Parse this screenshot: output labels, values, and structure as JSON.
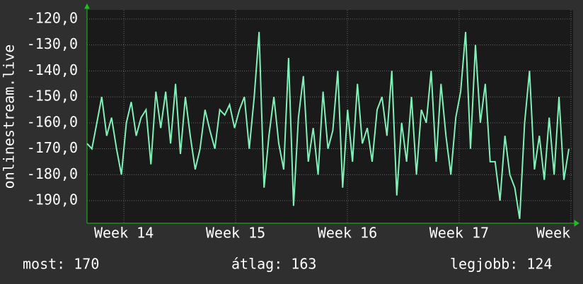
{
  "chart_data": {
    "type": "line",
    "y_label": "onlinestream.live",
    "x": [
      13.67,
      13.714,
      13.758,
      13.802,
      13.846,
      13.89,
      13.934,
      13.978,
      14.022,
      14.066,
      14.11,
      14.154,
      14.198,
      14.242,
      14.286,
      14.33,
      14.374,
      14.418,
      14.462,
      14.506,
      14.55,
      14.594,
      14.638,
      14.682,
      14.726,
      14.77,
      14.814,
      14.858,
      14.902,
      14.946,
      14.99,
      15.034,
      15.078,
      15.122,
      15.166,
      15.21,
      15.254,
      15.298,
      15.342,
      15.386,
      15.43,
      15.474,
      15.518,
      15.562,
      15.606,
      15.65,
      15.694,
      15.738,
      15.782,
      15.826,
      15.87,
      15.914,
      15.958,
      16.002,
      16.046,
      16.09,
      16.134,
      16.178,
      16.222,
      16.266,
      16.31,
      16.354,
      16.398,
      16.442,
      16.486,
      16.53,
      16.574,
      16.618,
      16.662,
      16.706,
      16.75,
      16.794,
      16.838,
      16.882,
      16.926,
      16.97,
      17.014,
      17.058,
      17.102,
      17.146,
      17.19,
      17.234,
      17.278,
      17.322,
      17.366,
      17.41,
      17.454,
      17.498,
      17.542,
      17.586,
      17.63,
      17.674,
      17.718,
      17.762,
      17.806,
      17.85,
      17.894,
      17.938,
      17.982
    ],
    "series": [
      {
        "color": "#80f0b8",
        "values": [
          -168,
          -170,
          -160,
          -150,
          -165,
          -158,
          -170,
          -180,
          -160,
          -152,
          -165,
          -158,
          -155,
          -176,
          -148,
          -162,
          -148,
          -168,
          -145,
          -172,
          -150,
          -165,
          -178,
          -170,
          -155,
          -163,
          -170,
          -155,
          -157,
          -153,
          -162,
          -155,
          -150,
          -170,
          -150,
          -125,
          -185,
          -165,
          -150,
          -168,
          -178,
          -135,
          -192,
          -158,
          -142,
          -175,
          -162,
          -180,
          -148,
          -170,
          -163,
          -140,
          -185,
          -155,
          -175,
          -145,
          -168,
          -162,
          -175,
          -155,
          -150,
          -165,
          -140,
          -188,
          -160,
          -175,
          -150,
          -180,
          -155,
          -160,
          -140,
          -175,
          -145,
          -165,
          -180,
          -158,
          -148,
          -125,
          -170,
          -130,
          -160,
          -145,
          -175,
          -175,
          -190,
          -165,
          -180,
          -185,
          -197,
          -160,
          -140,
          -178,
          -165,
          -182,
          -158,
          -180,
          -150,
          -182,
          -170
        ]
      }
    ],
    "xlim": [
      13.67,
      18.02
    ],
    "xticks": [
      {
        "value": 14,
        "label": "Week 14"
      },
      {
        "value": 15,
        "label": "Week 15"
      },
      {
        "value": 16,
        "label": "Week 16"
      },
      {
        "value": 17,
        "label": "Week 17"
      },
      {
        "value": 18,
        "label": "Week"
      }
    ],
    "ylim": [
      -198.7,
      -116.5
    ],
    "yticks": [
      {
        "value": -120,
        "label": "-120,0"
      },
      {
        "value": -130,
        "label": "-130,0"
      },
      {
        "value": -140,
        "label": "-140,0"
      },
      {
        "value": -150,
        "label": "-150,0"
      },
      {
        "value": -160,
        "label": "-160,0"
      },
      {
        "value": -170,
        "label": "-170,0"
      },
      {
        "value": -180,
        "label": "-180,0"
      },
      {
        "value": -190,
        "label": "-190,0"
      }
    ],
    "grid": true
  },
  "footer": {
    "current": "most: 170",
    "average": "átlag: 163",
    "best": "legjobb: 124"
  }
}
